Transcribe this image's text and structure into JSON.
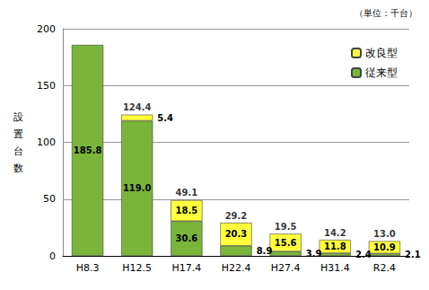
{
  "chart_data": {
    "type": "bar",
    "unit_label": "（単位：千台）",
    "y_label": "設置台数",
    "categories": [
      "H8.3",
      "H12.5",
      "H17.4",
      "H22.4",
      "H27.4",
      "H31.4",
      "R2.4"
    ],
    "series": [
      {
        "name": "従来型",
        "color": "#79b53b",
        "values": [
          185.8,
          119.0,
          30.6,
          8.9,
          3.9,
          2.4,
          2.1
        ],
        "value_labels": [
          "185.8",
          "119.0",
          "30.6",
          "8.9",
          "3.9",
          "2.4",
          "2.1"
        ]
      },
      {
        "name": "改良型",
        "color": "#ffff3c",
        "values": [
          null,
          5.4,
          18.5,
          20.3,
          15.6,
          11.8,
          10.9
        ],
        "value_labels": [
          null,
          "5.4",
          "18.5",
          "20.3",
          "15.6",
          "11.8",
          "10.9"
        ]
      }
    ],
    "totals": [
      null,
      124.4,
      49.1,
      29.2,
      19.5,
      14.2,
      13.0
    ],
    "total_labels": [
      null,
      "124.4",
      "49.1",
      "29.2",
      "19.5",
      "14.2",
      "13.0"
    ],
    "ylim": [
      0,
      200
    ],
    "yticks": [
      0,
      50,
      100,
      150,
      200
    ],
    "stacked": true,
    "data_labels": true,
    "grid": true,
    "legend": "top-right"
  }
}
